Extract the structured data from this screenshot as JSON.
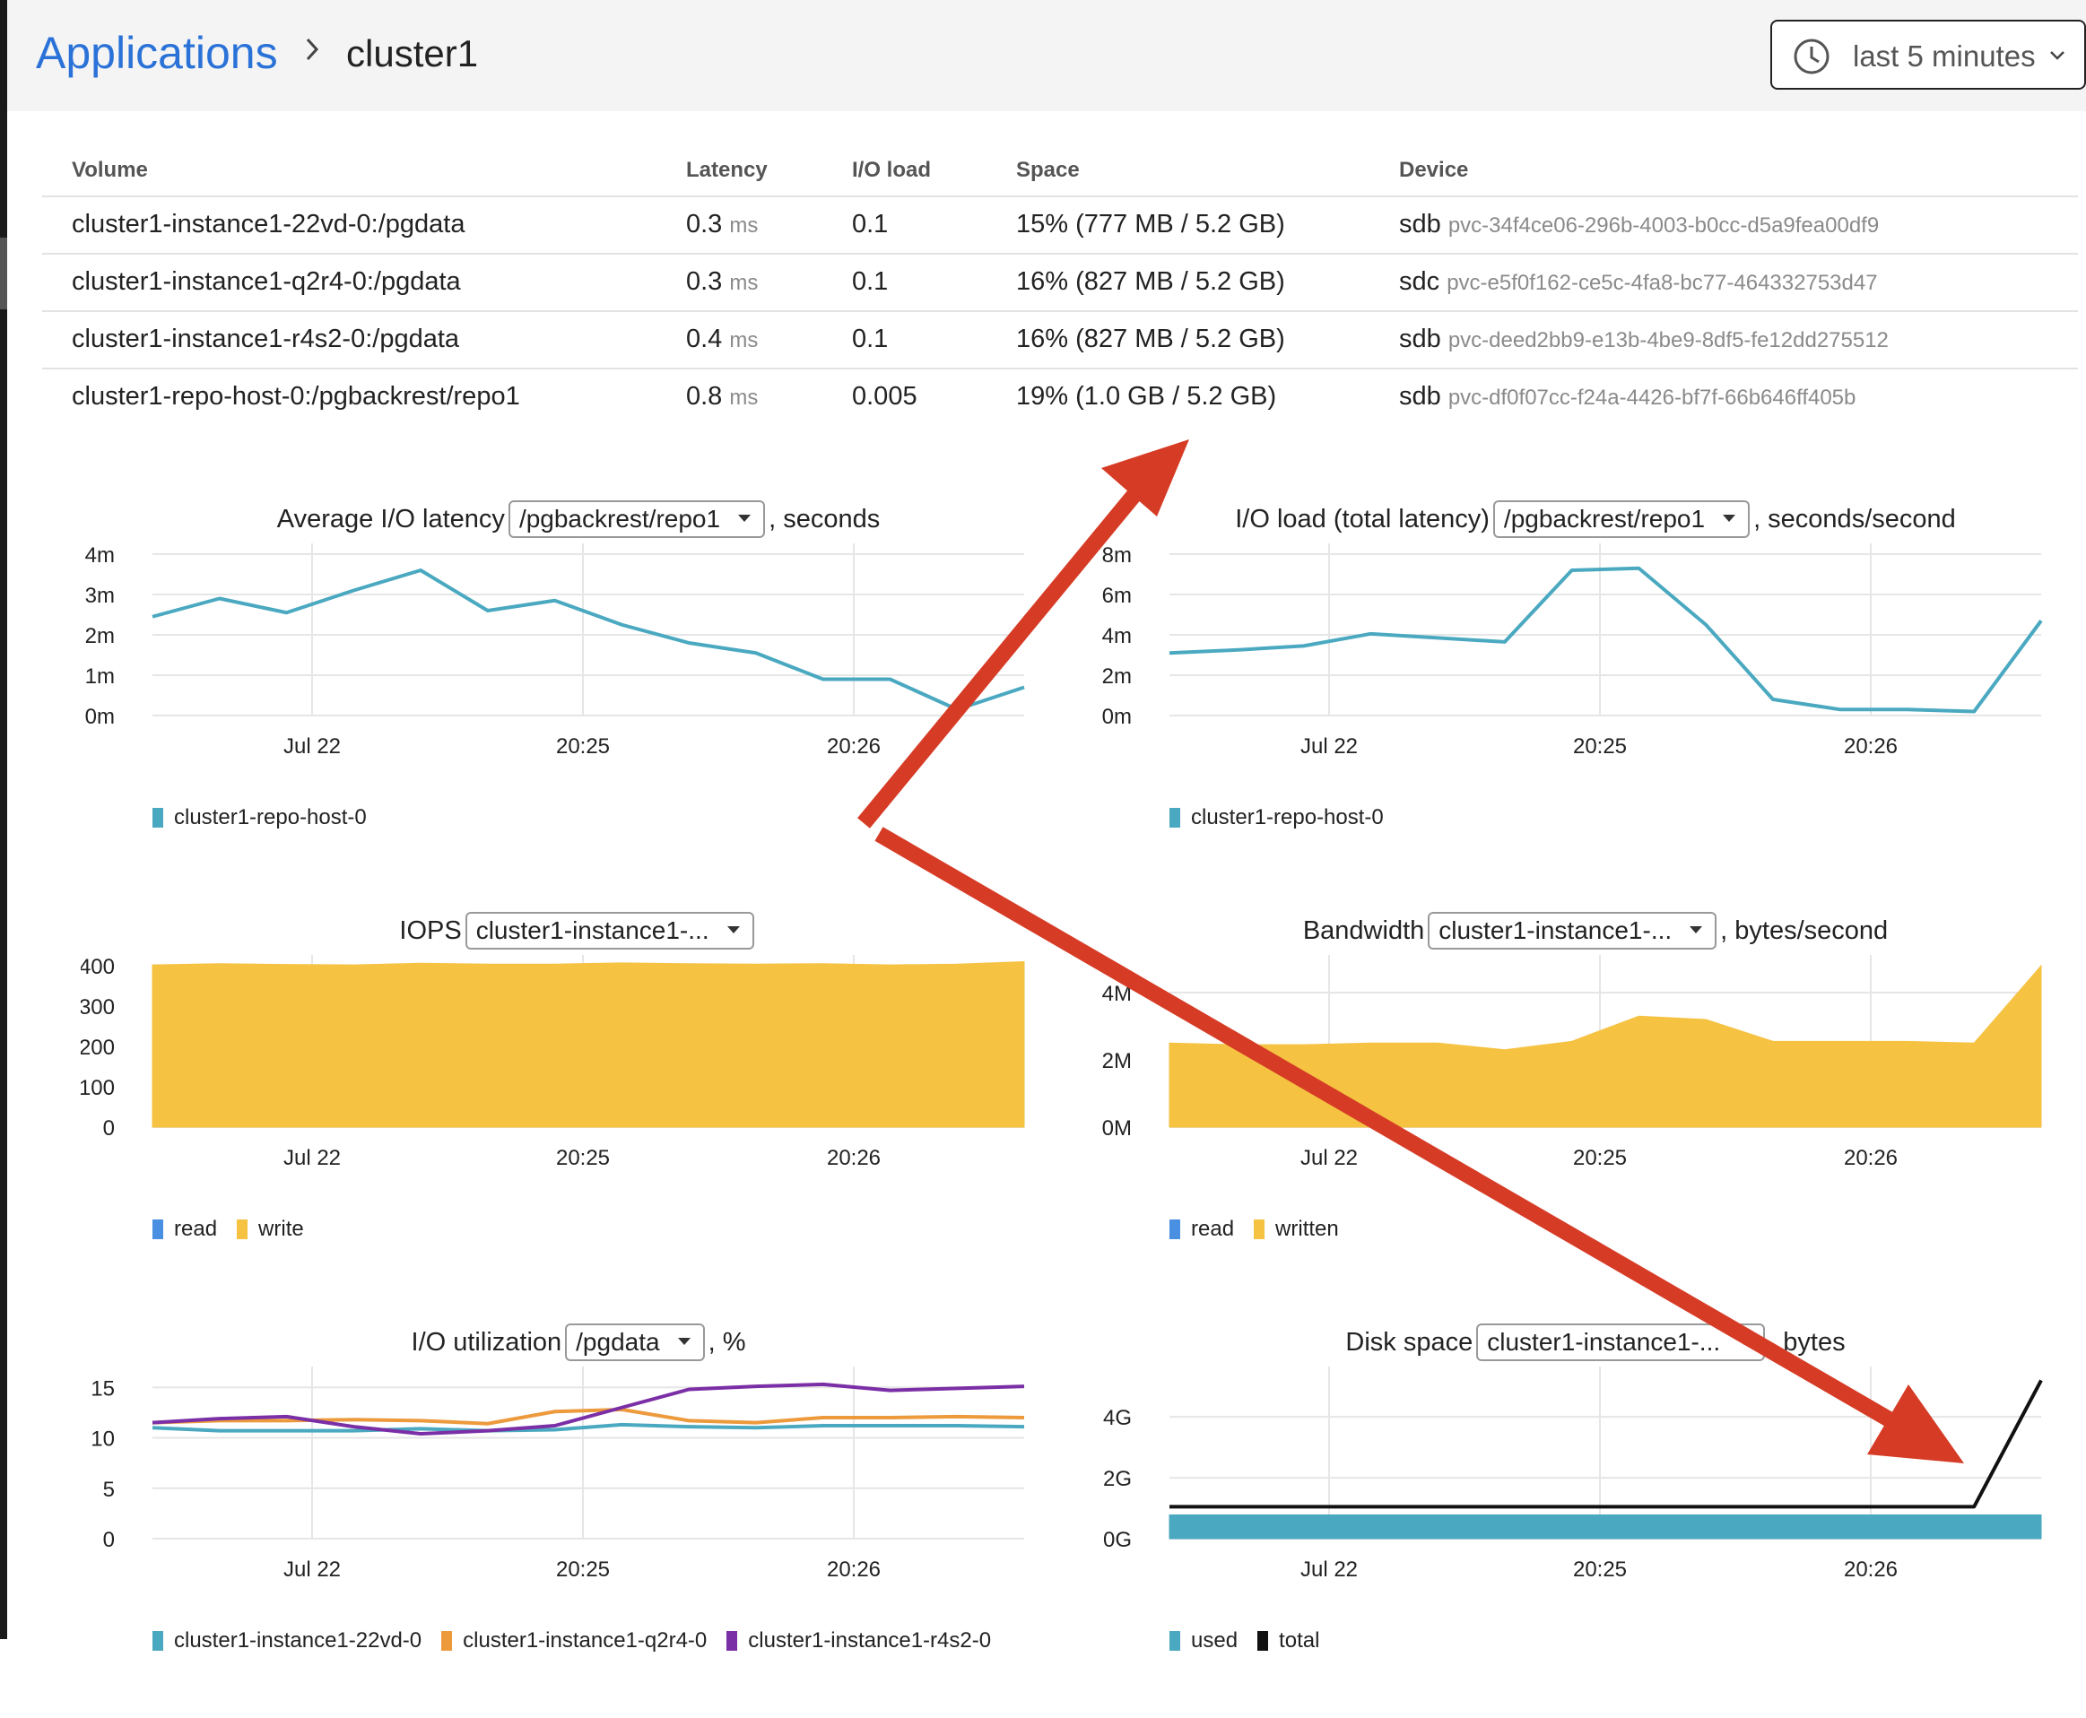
{
  "header": {
    "breadcrumb_root": "Applications",
    "breadcrumb_current": "cluster1",
    "time_range": "last 5 minutes"
  },
  "table": {
    "columns": [
      "Volume",
      "Latency",
      "I/O load",
      "Space",
      "Device"
    ],
    "rows": [
      {
        "volume": "cluster1-instance1-22vd-0:/pgdata",
        "latency": "0.3",
        "latency_unit": "ms",
        "io_load": "0.1",
        "space": "15% (777 MB / 5.2 GB)",
        "device": "sdb",
        "device_id": "pvc-34f4ce06-296b-4003-b0cc-d5a9fea00df9"
      },
      {
        "volume": "cluster1-instance1-q2r4-0:/pgdata",
        "latency": "0.3",
        "latency_unit": "ms",
        "io_load": "0.1",
        "space": "16% (827 MB / 5.2 GB)",
        "device": "sdc",
        "device_id": "pvc-e5f0f162-ce5c-4fa8-bc77-464332753d47"
      },
      {
        "volume": "cluster1-instance1-r4s2-0:/pgdata",
        "latency": "0.4",
        "latency_unit": "ms",
        "io_load": "0.1",
        "space": "16% (827 MB / 5.2 GB)",
        "device": "sdb",
        "device_id": "pvc-deed2bb9-e13b-4be9-8df5-fe12dd275512"
      },
      {
        "volume": "cluster1-repo-host-0:/pgbackrest/repo1",
        "latency": "0.8",
        "latency_unit": "ms",
        "io_load": "0.005",
        "space": "19% (1.0 GB / 5.2 GB)",
        "device": "sdb",
        "device_id": "pvc-df0f07cc-f24a-4426-bf7f-66b646ff405b"
      }
    ]
  },
  "colors": {
    "teal": "#4aa9c0",
    "yellow": "#f5c242",
    "blue": "#4a90e2",
    "orange": "#ec9a3c",
    "purple": "#7b2fa6",
    "black": "#111111",
    "arrow": "#d63b25",
    "grid": "#e6e6e6"
  },
  "chart_data": [
    {
      "id": "latency",
      "type": "line",
      "title_pre": "Average I/O latency",
      "selector": "/pgbackrest/repo1",
      "title_post": ", seconds",
      "yticks": [
        "4m",
        "3m",
        "2m",
        "1m",
        "0m"
      ],
      "ylim": [
        0,
        4
      ],
      "xticks": [
        "Jul 22",
        "20:25",
        "20:26"
      ],
      "series": [
        {
          "name": "cluster1-repo-host-0",
          "color": "#4aa9c0",
          "values": [
            2.45,
            2.9,
            2.55,
            3.1,
            3.6,
            2.6,
            2.85,
            2.25,
            1.8,
            1.55,
            0.9,
            0.9,
            0.15,
            0.7
          ]
        }
      ]
    },
    {
      "id": "ioload",
      "type": "line",
      "title_pre": "I/O load (total latency)",
      "selector": "/pgbackrest/repo1",
      "title_post": ", seconds/second",
      "yticks": [
        "8m",
        "6m",
        "4m",
        "2m",
        "0m"
      ],
      "ylim": [
        0,
        8
      ],
      "xticks": [
        "Jul 22",
        "20:25",
        "20:26"
      ],
      "series": [
        {
          "name": "cluster1-repo-host-0",
          "color": "#4aa9c0",
          "values": [
            3.1,
            3.25,
            3.45,
            4.05,
            3.85,
            3.65,
            7.2,
            7.3,
            4.5,
            0.8,
            0.3,
            0.3,
            0.2,
            4.7
          ]
        }
      ]
    },
    {
      "id": "iops",
      "type": "area",
      "title_pre": "IOPS",
      "selector": "cluster1-instance1-...",
      "title_post": "",
      "yticks": [
        "400",
        "300",
        "200",
        "100",
        "0"
      ],
      "ylim": [
        0,
        400
      ],
      "xticks": [
        "Jul 22",
        "20:25",
        "20:26"
      ],
      "series": [
        {
          "name": "read",
          "color": "#4a90e2",
          "values": [
            0,
            0,
            0,
            0,
            0,
            0,
            0,
            0,
            0,
            0,
            0,
            0,
            0,
            0
          ]
        },
        {
          "name": "write",
          "color": "#f5c242",
          "values": [
            402,
            405,
            403,
            402,
            406,
            404,
            404,
            407,
            405,
            404,
            405,
            402,
            404,
            410
          ]
        }
      ]
    },
    {
      "id": "bandwidth",
      "type": "area",
      "title_pre": "Bandwidth",
      "selector": "cluster1-instance1-...",
      "title_post": ", bytes/second",
      "yticks": [
        "4M",
        "2M",
        "0M"
      ],
      "ylim": [
        0,
        4.8
      ],
      "xticks": [
        "Jul 22",
        "20:25",
        "20:26"
      ],
      "series": [
        {
          "name": "read",
          "color": "#4a90e2",
          "values": [
            0,
            0,
            0,
            0,
            0,
            0,
            0,
            0,
            0,
            0,
            0,
            0,
            0,
            0
          ]
        },
        {
          "name": "written",
          "color": "#f5c242",
          "values": [
            2.5,
            2.45,
            2.45,
            2.5,
            2.5,
            2.3,
            2.55,
            3.3,
            3.2,
            2.55,
            2.55,
            2.55,
            2.5,
            4.8
          ]
        }
      ]
    },
    {
      "id": "utilization",
      "type": "line",
      "title_pre": "I/O utilization",
      "selector": "/pgdata",
      "title_post": ", %",
      "yticks": [
        "15",
        "10",
        "5",
        "0"
      ],
      "ylim": [
        0,
        16
      ],
      "xticks": [
        "Jul 22",
        "20:25",
        "20:26"
      ],
      "series": [
        {
          "name": "cluster1-instance1-22vd-0",
          "color": "#4aa9c0",
          "values": [
            11.0,
            10.7,
            10.7,
            10.7,
            10.9,
            10.7,
            10.8,
            11.3,
            11.1,
            11.0,
            11.2,
            11.2,
            11.2,
            11.1
          ]
        },
        {
          "name": "cluster1-instance1-q2r4-0",
          "color": "#ec9a3c",
          "values": [
            11.5,
            11.7,
            11.7,
            11.8,
            11.7,
            11.4,
            12.6,
            12.8,
            11.7,
            11.5,
            12.0,
            12.0,
            12.1,
            12.0
          ]
        },
        {
          "name": "cluster1-instance1-r4s2-0",
          "color": "#7b2fa6",
          "values": [
            11.5,
            11.9,
            12.1,
            11.1,
            10.4,
            10.7,
            11.2,
            13.0,
            14.8,
            15.1,
            15.3,
            14.7,
            14.9,
            15.1
          ]
        }
      ]
    },
    {
      "id": "diskspace",
      "type": "area",
      "title_pre": "Disk space",
      "selector": "cluster1-instance1-...",
      "title_post": ", bytes",
      "yticks": [
        "4G",
        "2G",
        "0G"
      ],
      "ylim": [
        0,
        5.3
      ],
      "xticks": [
        "Jul 22",
        "20:25",
        "20:26"
      ],
      "series": [
        {
          "name": "used",
          "color": "#4aa9c0",
          "values": [
            0.78,
            0.78,
            0.78,
            0.78,
            0.78,
            0.78,
            0.78,
            0.78,
            0.78,
            0.78,
            0.78,
            0.78,
            0.78,
            0.78
          ]
        },
        {
          "name": "total",
          "color": "#111111",
          "values": [
            1.05,
            1.05,
            1.05,
            1.05,
            1.05,
            1.05,
            1.05,
            1.05,
            1.05,
            1.05,
            1.05,
            1.05,
            1.05,
            5.2
          ]
        }
      ]
    }
  ]
}
